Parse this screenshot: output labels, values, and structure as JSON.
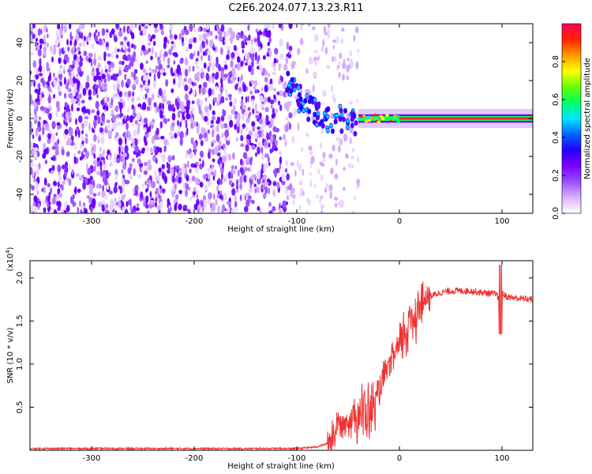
{
  "title": "C2E6.2024.077.13.23.R11",
  "chart_data": [
    {
      "type": "heatmap",
      "xlabel": "Height of straight line (km)",
      "ylabel": "Frequency (Hz)",
      "xlim": [
        -360,
        130
      ],
      "ylim": [
        -50,
        50
      ],
      "xticks": [
        -300,
        -200,
        -100,
        0,
        100
      ],
      "yticks": [
        -40,
        -20,
        0,
        20,
        40
      ],
      "grid": false,
      "colorbar": {
        "label": "Normalized spectral amplitude",
        "range": [
          0,
          1
        ],
        "ticks": [
          "0.0",
          "0.2",
          "0.4",
          "0.6",
          "0.8"
        ],
        "colormap": [
          "#ffffff",
          "#d9b3ff",
          "#9a4dff",
          "#7a00ff",
          "#2200ff",
          "#0066ff",
          "#00e5ff",
          "#00ff66",
          "#66ff00",
          "#ffff00",
          "#ff9900",
          "#ff2200",
          "#ff0055"
        ]
      },
      "features": {
        "noise_region_x": [
          -360,
          -40
        ],
        "sparse_gap_x": [
          -105,
          -40
        ],
        "line_start_x": -40,
        "line_freq": 0,
        "descending_trace": [
          [
            -110,
            18
          ],
          [
            -100,
            12
          ],
          [
            -90,
            6
          ],
          [
            -80,
            2
          ],
          [
            -70,
            0
          ],
          [
            -55,
            0
          ],
          [
            -40,
            -2
          ],
          [
            -20,
            0
          ],
          [
            -5,
            3
          ],
          [
            0,
            1
          ],
          [
            130,
            0
          ]
        ]
      }
    },
    {
      "type": "line",
      "xlabel": "Height of straight line (km)",
      "ylabel": "SNR (10 * v/v)",
      "yscale_label": "(x10",
      "yscale_exp": "4",
      "yscale_close": ")",
      "xlim": [
        -360,
        130
      ],
      "ylim": [
        0,
        2.2
      ],
      "xticks": [
        -300,
        -200,
        -100,
        0,
        100
      ],
      "yticks": [
        "0.5",
        "1.0",
        "1.5",
        "2.0"
      ],
      "grid": false,
      "series": [
        {
          "color": "#ee3333",
          "x": [
            -360,
            -300,
            -200,
            -100,
            -80,
            -70,
            -65,
            -60,
            -55,
            -50,
            -45,
            -40,
            -35,
            -30,
            -25,
            -20,
            -15,
            -10,
            -5,
            0,
            5,
            10,
            15,
            20,
            25,
            30,
            35,
            40,
            50,
            60,
            70,
            80,
            90,
            95,
            98,
            100,
            105,
            110,
            120,
            130
          ],
          "y": [
            0.02,
            0.02,
            0.02,
            0.02,
            0.04,
            0.08,
            0.15,
            0.3,
            0.32,
            0.35,
            0.4,
            0.45,
            0.42,
            0.4,
            0.5,
            0.65,
            0.85,
            1.0,
            1.1,
            1.2,
            1.35,
            1.5,
            1.6,
            1.68,
            1.73,
            1.78,
            1.81,
            1.83,
            1.85,
            1.85,
            1.85,
            1.83,
            1.82,
            1.8,
            1.75,
            1.82,
            1.78,
            1.77,
            1.76,
            1.75
          ]
        }
      ]
    }
  ]
}
